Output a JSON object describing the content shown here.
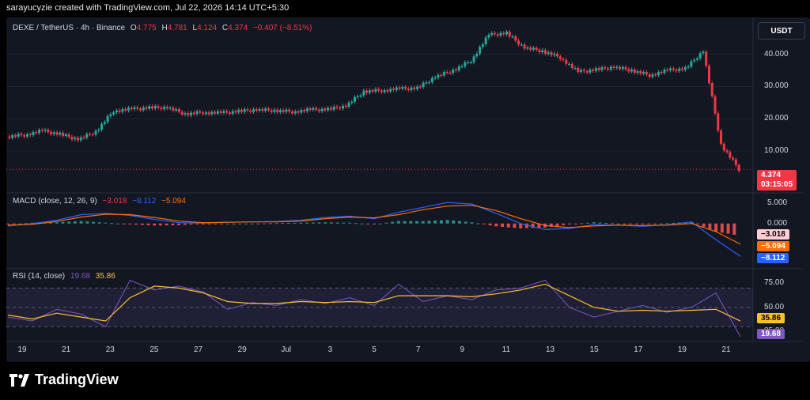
{
  "header": {
    "credit": "sarayucyzie created with TradingView.com, Jul 22, 2026 14:14 UTC+5:30"
  },
  "legend": {
    "symbol": "DEXE / TetherUS · 4h · Binance",
    "open_label": "O",
    "open": "4.775",
    "high_label": "H",
    "high": "4.781",
    "low_label": "L",
    "low": "4.124",
    "close_label": "C",
    "close": "4.374",
    "change": "−0.407 (−8.51%)"
  },
  "macd_legend": {
    "title": "MACD (close, 12, 26, 9)",
    "hist": "−3.018",
    "macd": "−8.112",
    "signal": "−5.094"
  },
  "rsi_legend": {
    "title": "RSI (14, close)",
    "rsi": "19.68",
    "ma": "35.86"
  },
  "currency_button": "USDT",
  "price_tag": {
    "value": "4.374",
    "countdown": "03:15:05"
  },
  "macd_tags": {
    "hist": "−3.018",
    "signal": "−5.094",
    "macd": "−8.112"
  },
  "rsi_tags": {
    "ma": "35.86",
    "rsi": "19.68"
  },
  "brand": "TradingView",
  "colors": {
    "up": "#26a69a",
    "down": "#f23645",
    "macd": "#2962ff",
    "signal": "#ff6d00",
    "rsi": "#7e57c2",
    "rsi_ma": "#fbc02d",
    "background": "#131722"
  },
  "chart_data": [
    {
      "type": "candlestick",
      "title": "DEXE / TetherUS · 4h · Binance",
      "x_ticks": [
        "19",
        "21",
        "23",
        "25",
        "27",
        "29",
        "Jul",
        "3",
        "5",
        "7",
        "9",
        "11",
        "13",
        "15",
        "17",
        "19",
        "21"
      ],
      "y_ticks": [
        "40.000",
        "30.000",
        "20.000",
        "10.000"
      ],
      "ylim": [
        0,
        47
      ],
      "close_path": [
        {
          "x": "Jun 18",
          "y": 14.5
        },
        {
          "x": "Jun 19",
          "y": 15.0
        },
        {
          "x": "Jun 20",
          "y": 16.3
        },
        {
          "x": "Jun 21",
          "y": 15.2
        },
        {
          "x": "Jun 22",
          "y": 13.6
        },
        {
          "x": "Jun 22.5",
          "y": 16.0
        },
        {
          "x": "Jun 23",
          "y": 22.5
        },
        {
          "x": "Jun 24",
          "y": 23.0
        },
        {
          "x": "Jun 25",
          "y": 23.4
        },
        {
          "x": "Jun 26",
          "y": 23.5
        },
        {
          "x": "Jun 27",
          "y": 21.5
        },
        {
          "x": "Jun 28",
          "y": 22.0
        },
        {
          "x": "Jun 29",
          "y": 21.8
        },
        {
          "x": "Jun 30",
          "y": 22.3
        },
        {
          "x": "Jul 1",
          "y": 22.8
        },
        {
          "x": "Jul 2",
          "y": 22.6
        },
        {
          "x": "Jul 3",
          "y": 22.2
        },
        {
          "x": "Jul 4",
          "y": 22.8
        },
        {
          "x": "Jul 5",
          "y": 22.9
        },
        {
          "x": "Jul 6",
          "y": 24.0
        },
        {
          "x": "Jul 7",
          "y": 28.5
        },
        {
          "x": "Jul 8",
          "y": 28.8
        },
        {
          "x": "Jul 9",
          "y": 29.3
        },
        {
          "x": "Jul 9.5",
          "y": 29.5
        },
        {
          "x": "Jul 10",
          "y": 33.0
        },
        {
          "x": "Jul 11",
          "y": 35.0
        },
        {
          "x": "Jul 12",
          "y": 38.0
        },
        {
          "x": "Jul 12.5",
          "y": 46.0
        },
        {
          "x": "Jul 13",
          "y": 46.5
        },
        {
          "x": "Jul 13.5",
          "y": 42.0
        },
        {
          "x": "Jul 14",
          "y": 41.0
        },
        {
          "x": "Jul 15",
          "y": 39.0
        },
        {
          "x": "Jul 16",
          "y": 34.5
        },
        {
          "x": "Jul 17",
          "y": 35.2
        },
        {
          "x": "Jul 18",
          "y": 36.0
        },
        {
          "x": "Jul 19",
          "y": 35.0
        },
        {
          "x": "Jul 20",
          "y": 33.5
        },
        {
          "x": "Jul 20.5",
          "y": 35.0
        },
        {
          "x": "Jul 21",
          "y": 35.5
        },
        {
          "x": "Jul 21.3",
          "y": 41.0
        },
        {
          "x": "Jul 21.5",
          "y": 12.0
        },
        {
          "x": "Jul 22",
          "y": 4.374
        }
      ],
      "last": {
        "open": 4.775,
        "high": 4.781,
        "low": 4.124,
        "close": 4.374,
        "change": -0.407,
        "change_pct": -8.51
      }
    },
    {
      "type": "line",
      "title": "MACD (close, 12, 26, 9)",
      "y_ticks": [
        "5.000",
        "0.000"
      ],
      "ylim": [
        -10,
        6
      ],
      "series": [
        {
          "name": "MACD",
          "values": [
            -0.6,
            0.0,
            0.8,
            2.2,
            2.5,
            2.0,
            1.0,
            0.2,
            0.1,
            0.3,
            0.4,
            0.5,
            0.8,
            1.5,
            1.8,
            1.2,
            2.8,
            4.0,
            5.2,
            4.8,
            2.5,
            0.0,
            -1.5,
            -1.2,
            -0.3,
            -0.4,
            -0.7,
            -0.3,
            0.4,
            -4.0,
            -8.112
          ]
        },
        {
          "name": "Signal",
          "values": [
            -0.4,
            -0.2,
            0.5,
            1.6,
            2.3,
            2.2,
            1.5,
            0.6,
            0.2,
            0.3,
            0.4,
            0.4,
            0.6,
            1.2,
            1.6,
            1.4,
            2.2,
            3.4,
            4.3,
            4.5,
            3.2,
            1.2,
            -0.5,
            -1.0,
            -0.6,
            -0.4,
            -0.5,
            -0.4,
            0.0,
            -2.0,
            -5.094
          ]
        },
        {
          "name": "Histogram",
          "values": [
            -0.2,
            0.2,
            0.3,
            0.6,
            0.2,
            -0.2,
            -0.5,
            -0.4,
            -0.1,
            0.0,
            0.0,
            0.1,
            0.2,
            0.3,
            0.2,
            -0.2,
            0.6,
            0.6,
            0.9,
            0.3,
            -0.7,
            -1.2,
            -1.0,
            -0.2,
            0.3,
            0.0,
            -0.2,
            0.1,
            0.4,
            -2.0,
            -3.018
          ]
        }
      ]
    },
    {
      "type": "line",
      "title": "RSI (14, close)",
      "y_ticks": [
        "75.00",
        "50.00",
        "25.00"
      ],
      "ylim": [
        18,
        85
      ],
      "bands": [
        30,
        50,
        70
      ],
      "series": [
        {
          "name": "RSI",
          "values": [
            40,
            36,
            48,
            43,
            30,
            78,
            68,
            72,
            66,
            48,
            55,
            52,
            58,
            54,
            60,
            52,
            74,
            56,
            62,
            58,
            68,
            70,
            78,
            50,
            40,
            46,
            52,
            45,
            50,
            65,
            19.68
          ]
        },
        {
          "name": "RSI MA",
          "values": [
            42,
            38,
            44,
            40,
            36,
            60,
            72,
            70,
            65,
            56,
            54,
            54,
            56,
            55,
            56,
            55,
            62,
            62,
            62,
            61,
            64,
            68,
            74,
            62,
            50,
            46,
            47,
            46,
            47,
            48,
            35.86
          ]
        }
      ]
    }
  ]
}
